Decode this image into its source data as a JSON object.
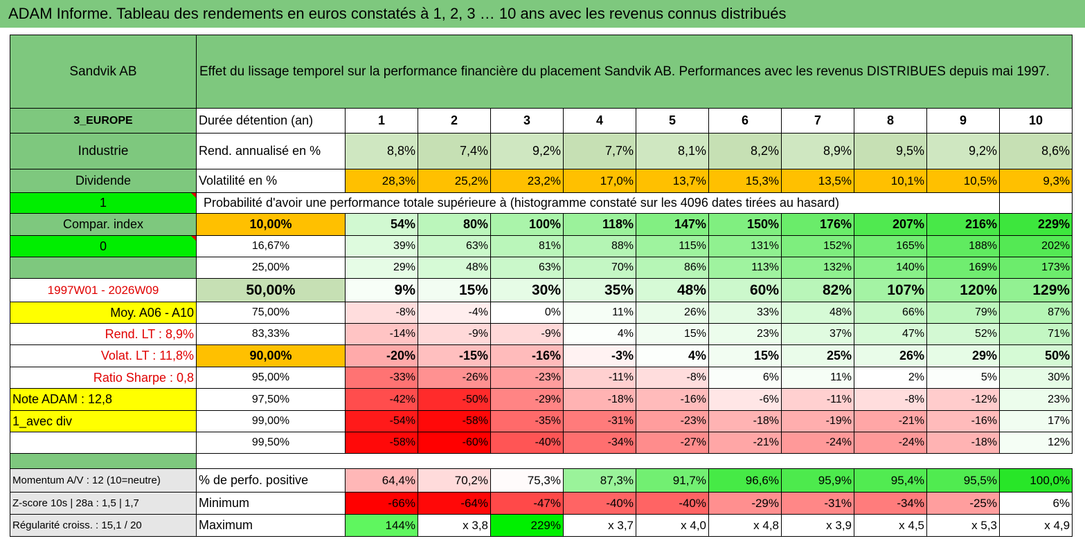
{
  "title": "ADAM Informe. Tableau des rendements en euros constatés à 1, 2, 3 … 10 ans avec les revenus connus distribués",
  "header": {
    "fund": "Sandvik AB",
    "description": "Effet du lissage temporel sur la performance financière du placement Sandvik AB. Performances avec les revenus DISTRIBUES depuis mai 1997."
  },
  "years_row": {
    "left": "3_EUROPE",
    "label": "Durée détention (an)",
    "values": [
      "1",
      "2",
      "3",
      "4",
      "5",
      "6",
      "7",
      "8",
      "9",
      "10"
    ]
  },
  "rend_row": {
    "left": "Industrie",
    "label": "Rend. annualisé en %",
    "values": [
      "8,8%",
      "7,4%",
      "9,2%",
      "7,7%",
      "8,1%",
      "8,2%",
      "8,9%",
      "9,5%",
      "9,2%",
      "8,6%"
    ]
  },
  "vol_row": {
    "left": "Dividende",
    "label": "Volatilité en %",
    "values": [
      "28,3%",
      "25,2%",
      "23,2%",
      "17,0%",
      "13,7%",
      "15,3%",
      "13,5%",
      "10,1%",
      "10,5%",
      "9,3%"
    ]
  },
  "prob_row": {
    "left": "1",
    "label": "Probabilité d'avoir une performance totale supérieure à (histogramme constaté sur les 4096 dates tirées au hasard)"
  },
  "rows": [
    {
      "left": "Compar. index",
      "pct": "10,00%",
      "values": [
        "54%",
        "80%",
        "100%",
        "118%",
        "147%",
        "150%",
        "176%",
        "207%",
        "216%",
        "229%"
      ]
    },
    {
      "left": "0",
      "pct": "16,67%",
      "values": [
        "39%",
        "63%",
        "81%",
        "88%",
        "115%",
        "131%",
        "152%",
        "165%",
        "188%",
        "202%"
      ]
    },
    {
      "left": "",
      "pct": "25,00%",
      "values": [
        "29%",
        "48%",
        "63%",
        "70%",
        "86%",
        "113%",
        "132%",
        "140%",
        "169%",
        "173%"
      ]
    },
    {
      "left": "1997W01 - 2026W09",
      "pct": "50,00%",
      "values": [
        "9%",
        "15%",
        "30%",
        "35%",
        "48%",
        "60%",
        "82%",
        "107%",
        "120%",
        "129%"
      ]
    },
    {
      "left": "Moy. A06 - A10",
      "pct": "75,00%",
      "values": [
        "-8%",
        "-4%",
        "0%",
        "11%",
        "26%",
        "33%",
        "48%",
        "66%",
        "79%",
        "87%"
      ]
    },
    {
      "left": "Rend. LT :   8,9%",
      "pct": "83,33%",
      "values": [
        "-14%",
        "-9%",
        "-9%",
        "4%",
        "15%",
        "23%",
        "37%",
        "47%",
        "52%",
        "71%"
      ]
    },
    {
      "left": "Volat. LT :   11,8%",
      "pct": "90,00%",
      "values": [
        "-20%",
        "-15%",
        "-16%",
        "-3%",
        "4%",
        "15%",
        "25%",
        "26%",
        "29%",
        "50%"
      ]
    },
    {
      "left": "Ratio Sharpe :    0,8",
      "pct": "95,00%",
      "values": [
        "-33%",
        "-26%",
        "-23%",
        "-11%",
        "-8%",
        "6%",
        "11%",
        "2%",
        "5%",
        "30%"
      ]
    },
    {
      "left": "Note ADAM : 12,8",
      "pct": "97,50%",
      "values": [
        "-42%",
        "-50%",
        "-29%",
        "-18%",
        "-16%",
        "-6%",
        "-11%",
        "-8%",
        "-12%",
        "23%"
      ]
    },
    {
      "left": "1_avec div",
      "pct": "99,00%",
      "values": [
        "-54%",
        "-58%",
        "-35%",
        "-31%",
        "-23%",
        "-18%",
        "-19%",
        "-21%",
        "-16%",
        "17%"
      ]
    },
    {
      "left": "",
      "pct": "99,50%",
      "values": [
        "-58%",
        "-60%",
        "-40%",
        "-34%",
        "-27%",
        "-21%",
        "-24%",
        "-24%",
        "-18%",
        "12%"
      ]
    }
  ],
  "footer": [
    {
      "left": "Momentum A/V : 12 (10=neutre)",
      "label": "% de perfo. positive",
      "values": [
        "64,4%",
        "70,2%",
        "75,3%",
        "87,3%",
        "91,7%",
        "96,6%",
        "95,9%",
        "95,4%",
        "95,5%",
        "100,0%"
      ]
    },
    {
      "left": "Z-score 10s | 28a : 1,5 | 1,7",
      "label": "Minimum",
      "values": [
        "-66%",
        "-64%",
        "-47%",
        "-40%",
        "-40%",
        "-29%",
        "-31%",
        "-34%",
        "-25%",
        "6%"
      ]
    },
    {
      "left": "Régularité croiss. : 15,1 / 20",
      "label": "Maximum",
      "values": [
        "144%",
        "x 3,8",
        "229%",
        "x 3,7",
        "x 4,0",
        "x 4,8",
        "x 3,9",
        "x 4,5",
        "x 5,3",
        "x 4,9"
      ]
    }
  ]
}
